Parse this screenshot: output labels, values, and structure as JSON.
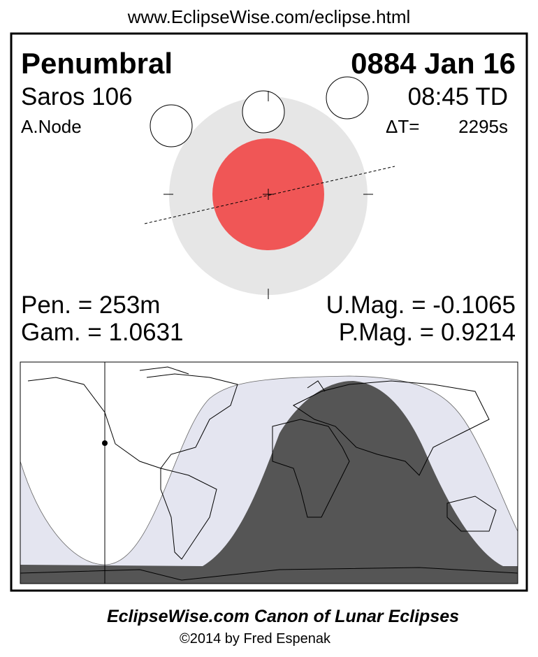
{
  "header": {
    "url": "www.EclipseWise.com/eclipse.html"
  },
  "panel": {
    "type": "Penumbral",
    "date": "0884 Jan 16",
    "saros": "Saros 106",
    "time": "08:45 TD",
    "node": "A.Node",
    "delta_t_label": "ΔT=",
    "delta_t": "2295s",
    "pen": "Pen. = 253m",
    "umag": "U.Mag. = -0.1065",
    "gam": "Gam. = 1.0631",
    "pmag": "P.Mag. = 0.9214"
  },
  "footer": {
    "title": "EclipseWise.com Canon of Lunar Eclipses",
    "credit": "©2014 by Fred Espenak"
  }
}
